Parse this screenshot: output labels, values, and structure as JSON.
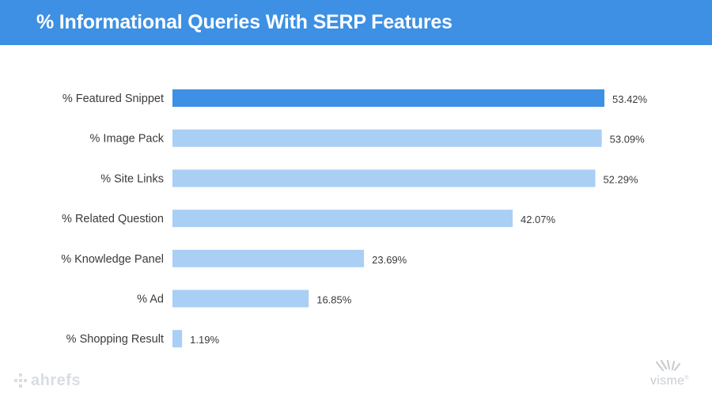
{
  "header": {
    "title": "% Informational Queries With SERP Features"
  },
  "logos": {
    "left": "ahrefs",
    "right": "visme",
    "right_mark": "®"
  },
  "colors": {
    "header": "#3d90e3",
    "highlight_bar": "#3d90e3",
    "bar": "#a9cff5",
    "label": "#3a3a3a"
  },
  "chart_data": {
    "type": "bar",
    "orientation": "horizontal",
    "title": "% Informational Queries With SERP Features",
    "categories": [
      "% Featured Snippet",
      "% Image Pack",
      "% Site Links",
      "% Related Question",
      "% Knowledge Panel",
      "% Ad",
      "% Shopping Result"
    ],
    "values": [
      53.42,
      53.09,
      52.29,
      42.07,
      23.69,
      16.85,
      1.19
    ],
    "value_labels": [
      "53.42%",
      "53.09%",
      "52.29%",
      "42.07%",
      "23.69%",
      "16.85%",
      "1.19%"
    ],
    "highlight_index": 0,
    "xlim": [
      0,
      53.42
    ],
    "grid": false,
    "legend": "none"
  }
}
